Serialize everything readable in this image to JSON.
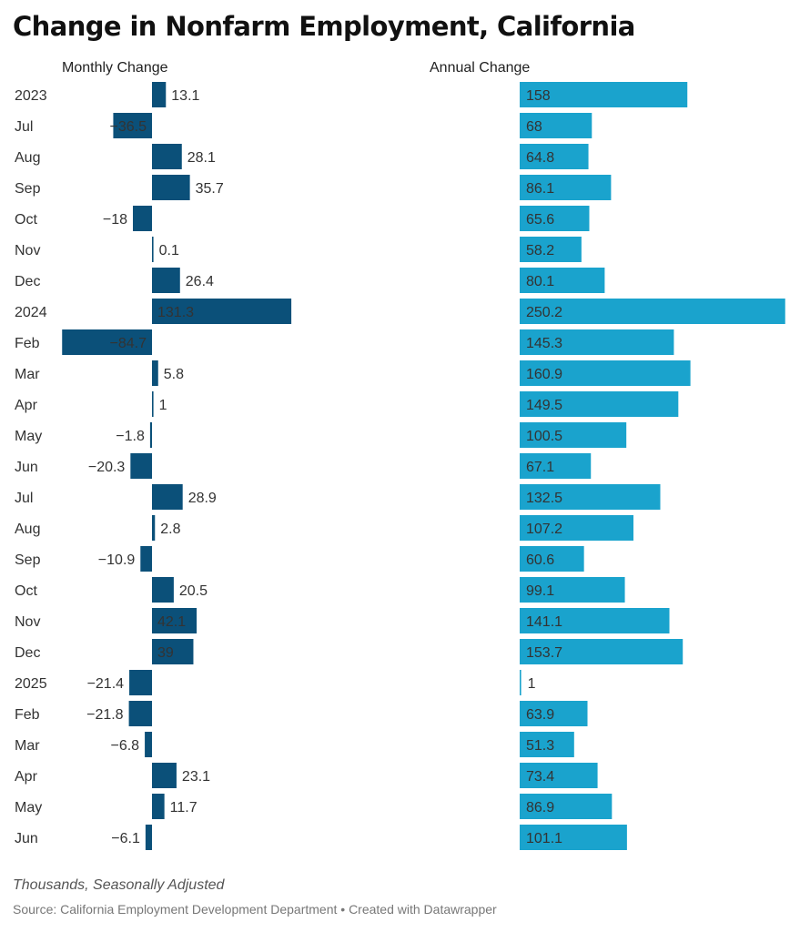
{
  "title": "Change in Nonfarm Employment, California",
  "note": "Thousands, Seasonally Adjusted",
  "source": "Source: California Employment Development Department • Created with Datawrapper",
  "colors": {
    "monthly": "#0b5079",
    "annual": "#1aa3cd",
    "label_on_bar": "#ffffff",
    "label": "#333333"
  },
  "chart_data": [
    {
      "type": "bar",
      "orientation": "horizontal",
      "title": "Monthly Change",
      "categories": [
        "2023",
        "Jul",
        "Aug",
        "Sep",
        "Oct",
        "Nov",
        "Dec",
        "2024",
        "Feb",
        "Mar",
        "Apr",
        "May",
        "Jun",
        "Jul",
        "Aug",
        "Sep",
        "Oct",
        "Nov",
        "Dec",
        "2025",
        "Feb",
        "Mar",
        "Apr",
        "May",
        "Jun"
      ],
      "values": [
        13.1,
        -36.5,
        28.1,
        35.7,
        -18,
        0.1,
        26.4,
        131.3,
        -84.7,
        5.8,
        1,
        -1.8,
        -20.3,
        28.9,
        2.8,
        -10.9,
        20.5,
        42.1,
        39,
        -21.4,
        -21.8,
        -6.8,
        23.1,
        11.7,
        -6.1
      ],
      "labels": [
        "13.1",
        "−36.5",
        "28.1",
        "35.7",
        "−18",
        "0.1",
        "26.4",
        "131.3",
        "−84.7",
        "5.8",
        "1",
        "−1.8",
        "−20.3",
        "28.9",
        "2.8",
        "−10.9",
        "20.5",
        "42.1",
        "39",
        "−21.4",
        "−21.8",
        "−6.8",
        "23.1",
        "11.7",
        "−6.1"
      ],
      "grid": false,
      "legend": "none"
    },
    {
      "type": "bar",
      "orientation": "horizontal",
      "title": "Annual Change",
      "categories": [
        "2023",
        "Jul",
        "Aug",
        "Sep",
        "Oct",
        "Nov",
        "Dec",
        "2024",
        "Feb",
        "Mar",
        "Apr",
        "May",
        "Jun",
        "Jul",
        "Aug",
        "Sep",
        "Oct",
        "Nov",
        "Dec",
        "2025",
        "Feb",
        "Mar",
        "Apr",
        "May",
        "Jun"
      ],
      "values": [
        158,
        68,
        64.8,
        86.1,
        65.6,
        58.2,
        80.1,
        250.2,
        145.3,
        160.9,
        149.5,
        100.5,
        67.1,
        132.5,
        107.2,
        60.6,
        99.1,
        141.1,
        153.7,
        1,
        63.9,
        51.3,
        73.4,
        86.9,
        101.1
      ],
      "labels": [
        "158",
        "68",
        "64.8",
        "86.1",
        "65.6",
        "58.2",
        "80.1",
        "250.2",
        "145.3",
        "160.9",
        "149.5",
        "100.5",
        "67.1",
        "132.5",
        "107.2",
        "60.6",
        "99.1",
        "141.1",
        "153.7",
        "1",
        "63.9",
        "51.3",
        "73.4",
        "86.9",
        "101.1"
      ],
      "grid": false,
      "legend": "none"
    }
  ]
}
